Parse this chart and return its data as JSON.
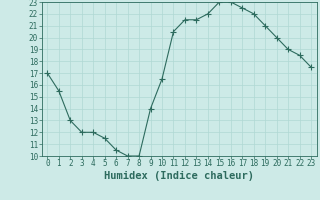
{
  "x": [
    0,
    1,
    2,
    3,
    4,
    5,
    6,
    7,
    8,
    9,
    10,
    11,
    12,
    13,
    14,
    15,
    16,
    17,
    18,
    19,
    20,
    21,
    22,
    23
  ],
  "y": [
    17.0,
    15.5,
    13.0,
    12.0,
    12.0,
    11.5,
    10.5,
    10.0,
    10.0,
    14.0,
    16.5,
    20.5,
    21.5,
    21.5,
    22.0,
    23.0,
    23.0,
    22.5,
    22.0,
    21.0,
    20.0,
    19.0,
    18.5,
    17.5
  ],
  "xlim": [
    0,
    23
  ],
  "ylim": [
    10,
    23
  ],
  "yticks": [
    10,
    11,
    12,
    13,
    14,
    15,
    16,
    17,
    18,
    19,
    20,
    21,
    22,
    23
  ],
  "xticks": [
    0,
    1,
    2,
    3,
    4,
    5,
    6,
    7,
    8,
    9,
    10,
    11,
    12,
    13,
    14,
    15,
    16,
    17,
    18,
    19,
    20,
    21,
    22,
    23
  ],
  "xlabel": "Humidex (Indice chaleur)",
  "line_color": "#2d6b5e",
  "marker": "+",
  "marker_size": 4,
  "bg_color": "#cdeae7",
  "grid_color": "#b0d8d4",
  "tick_label_color": "#2d6b5e",
  "xlabel_color": "#2d6b5e",
  "xlabel_fontsize": 7.5,
  "tick_fontsize": 5.5
}
